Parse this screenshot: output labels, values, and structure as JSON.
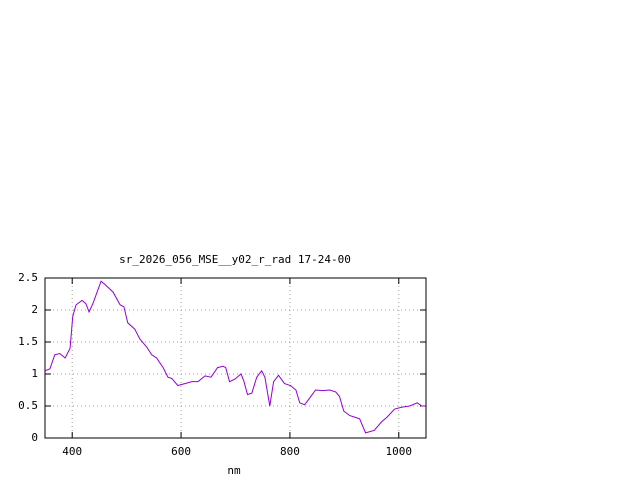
{
  "chart_data": {
    "type": "line",
    "title": "sr_2026_056_MSE__y02_r_rad 17-24-00",
    "x_label": "nm",
    "x": [
      350,
      359,
      368,
      377,
      387,
      396,
      401,
      407,
      418,
      425,
      431,
      438,
      453,
      460,
      475,
      488,
      495,
      502,
      515,
      524,
      537,
      546,
      555,
      567,
      576,
      583,
      594,
      607,
      620,
      631,
      644,
      655,
      667,
      677,
      682,
      689,
      699,
      710,
      715,
      722,
      730,
      739,
      748,
      754,
      763,
      770,
      779,
      790,
      801,
      811,
      818,
      827,
      836,
      847,
      860,
      873,
      884,
      891,
      899,
      910,
      921,
      928,
      939,
      955,
      968,
      979,
      992,
      1005,
      1020,
      1034,
      1042,
      1049
    ],
    "series": [
      {
        "color": "#9400d3",
        "values": [
          1.05,
          1.08,
          1.3,
          1.32,
          1.25,
          1.4,
          1.9,
          2.08,
          2.15,
          2.1,
          1.97,
          2.1,
          2.45,
          2.4,
          2.28,
          2.08,
          2.05,
          1.8,
          1.7,
          1.55,
          1.42,
          1.3,
          1.25,
          1.1,
          0.95,
          0.93,
          0.82,
          0.85,
          0.88,
          0.88,
          0.97,
          0.95,
          1.1,
          1.12,
          1.1,
          0.88,
          0.92,
          1.0,
          0.9,
          0.68,
          0.7,
          0.95,
          1.05,
          0.95,
          0.5,
          0.88,
          0.98,
          0.85,
          0.82,
          0.75,
          0.55,
          0.52,
          0.62,
          0.75,
          0.74,
          0.75,
          0.72,
          0.65,
          0.42,
          0.35,
          0.32,
          0.3,
          0.08,
          0.12,
          0.25,
          0.33,
          0.45,
          0.48,
          0.5,
          0.55,
          0.5,
          0.5
        ]
      }
    ],
    "xlim": [
      350,
      1050
    ],
    "ylim": [
      0,
      2.5
    ],
    "xticks": [
      400,
      600,
      800,
      1000
    ],
    "yticks": [
      0,
      0.5,
      1,
      1.5,
      2,
      2.5
    ],
    "grid": true
  }
}
